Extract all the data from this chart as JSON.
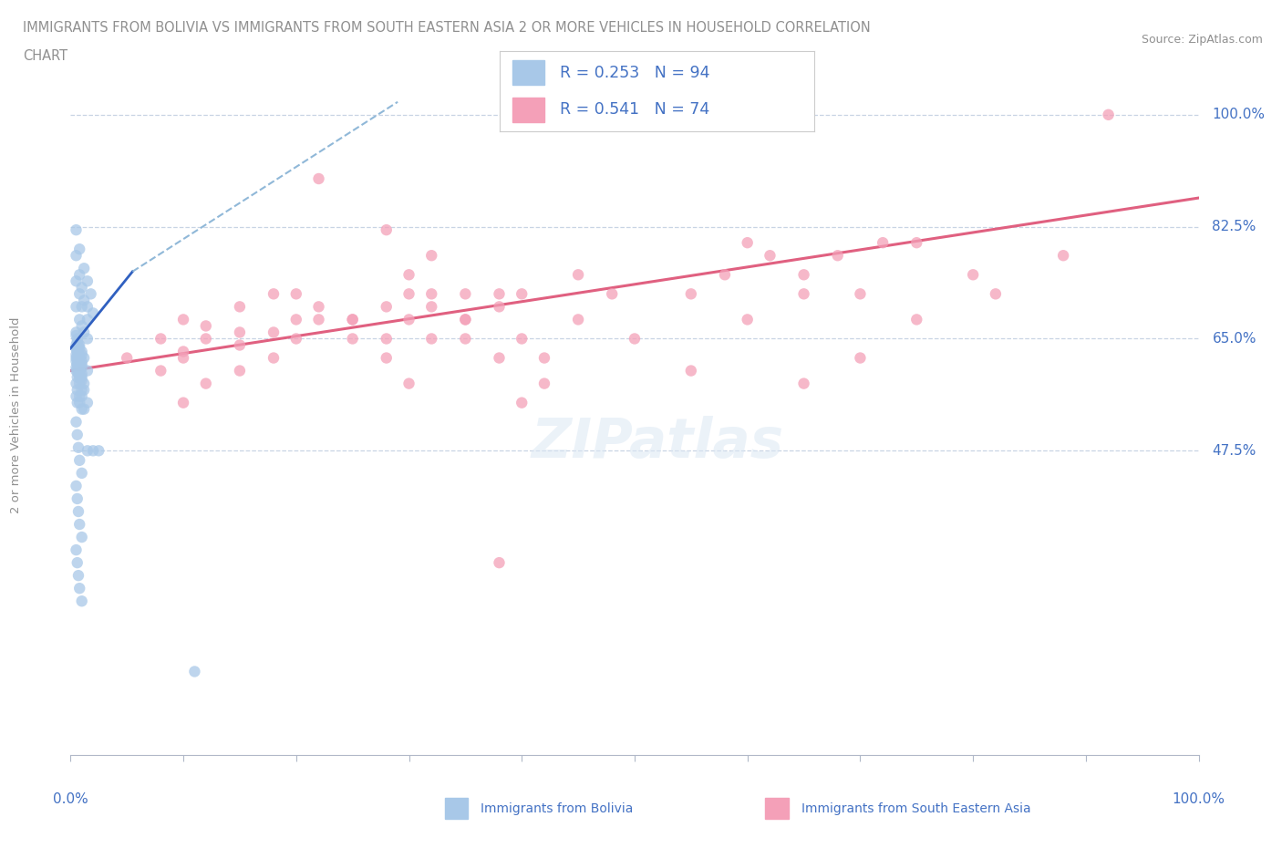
{
  "title_line1": "IMMIGRANTS FROM BOLIVIA VS IMMIGRANTS FROM SOUTH EASTERN ASIA 2 OR MORE VEHICLES IN HOUSEHOLD CORRELATION",
  "title_line2": "CHART",
  "source": "Source: ZipAtlas.com",
  "ylabel": "2 or more Vehicles in Household",
  "r_bolivia": 0.253,
  "n_bolivia": 94,
  "r_sea": 0.541,
  "n_sea": 74,
  "color_bolivia": "#a8c8e8",
  "color_sea": "#f4a0b8",
  "trendline_bolivia_solid_color": "#3060c0",
  "trendline_bolivia_dash_color": "#90b8d8",
  "trendline_sea_color": "#e06080",
  "gridline_color": "#c8d4e4",
  "axis_color": "#b0b8c8",
  "text_color": "#4472c4",
  "title_color": "#909090",
  "bolivia_x": [
    0.005,
    0.008,
    0.012,
    0.015,
    0.018,
    0.005,
    0.008,
    0.01,
    0.012,
    0.015,
    0.005,
    0.008,
    0.01,
    0.015,
    0.02,
    0.005,
    0.008,
    0.01,
    0.012,
    0.015,
    0.005,
    0.006,
    0.008,
    0.01,
    0.012,
    0.005,
    0.006,
    0.008,
    0.01,
    0.015,
    0.005,
    0.006,
    0.008,
    0.01,
    0.012,
    0.005,
    0.006,
    0.008,
    0.01,
    0.012,
    0.005,
    0.006,
    0.008,
    0.01,
    0.015,
    0.005,
    0.006,
    0.008,
    0.01,
    0.012,
    0.005,
    0.006,
    0.007,
    0.008,
    0.01,
    0.005,
    0.006,
    0.007,
    0.008,
    0.01,
    0.005,
    0.006,
    0.007,
    0.008,
    0.01,
    0.005,
    0.006,
    0.007,
    0.008,
    0.01,
    0.005,
    0.006,
    0.007,
    0.008,
    0.01,
    0.005,
    0.006,
    0.007,
    0.008,
    0.01,
    0.005,
    0.006,
    0.007,
    0.008,
    0.01,
    0.005,
    0.006,
    0.007,
    0.008,
    0.01,
    0.015,
    0.02,
    0.025,
    0.11
  ],
  "bolivia_y": [
    0.82,
    0.79,
    0.76,
    0.74,
    0.72,
    0.78,
    0.75,
    0.73,
    0.71,
    0.7,
    0.74,
    0.72,
    0.7,
    0.68,
    0.69,
    0.7,
    0.68,
    0.67,
    0.66,
    0.65,
    0.66,
    0.65,
    0.64,
    0.63,
    0.62,
    0.64,
    0.63,
    0.62,
    0.61,
    0.6,
    0.62,
    0.61,
    0.6,
    0.59,
    0.58,
    0.6,
    0.59,
    0.58,
    0.57,
    0.57,
    0.58,
    0.57,
    0.56,
    0.56,
    0.55,
    0.56,
    0.55,
    0.55,
    0.54,
    0.54,
    0.655,
    0.645,
    0.64,
    0.635,
    0.625,
    0.635,
    0.63,
    0.625,
    0.62,
    0.615,
    0.625,
    0.62,
    0.615,
    0.61,
    0.605,
    0.615,
    0.61,
    0.605,
    0.6,
    0.595,
    0.605,
    0.6,
    0.595,
    0.59,
    0.585,
    0.52,
    0.5,
    0.48,
    0.46,
    0.44,
    0.42,
    0.4,
    0.38,
    0.36,
    0.34,
    0.32,
    0.3,
    0.28,
    0.26,
    0.24,
    0.475,
    0.475,
    0.475,
    0.13
  ],
  "sea_x": [
    0.05,
    0.08,
    0.1,
    0.12,
    0.15,
    0.08,
    0.1,
    0.12,
    0.15,
    0.18,
    0.1,
    0.12,
    0.15,
    0.18,
    0.2,
    0.15,
    0.18,
    0.2,
    0.22,
    0.25,
    0.2,
    0.22,
    0.25,
    0.28,
    0.3,
    0.25,
    0.28,
    0.3,
    0.32,
    0.35,
    0.28,
    0.3,
    0.32,
    0.35,
    0.38,
    0.3,
    0.32,
    0.35,
    0.38,
    0.4,
    0.35,
    0.38,
    0.4,
    0.42,
    0.45,
    0.4,
    0.42,
    0.45,
    0.48,
    0.5,
    0.28,
    0.32,
    0.38,
    0.1,
    0.22,
    0.55,
    0.58,
    0.6,
    0.62,
    0.65,
    0.6,
    0.65,
    0.68,
    0.7,
    0.72,
    0.65,
    0.7,
    0.75,
    0.55,
    0.8,
    0.75,
    0.82,
    0.88,
    0.92
  ],
  "sea_y": [
    0.62,
    0.6,
    0.62,
    0.58,
    0.64,
    0.65,
    0.63,
    0.67,
    0.6,
    0.66,
    0.68,
    0.65,
    0.7,
    0.62,
    0.68,
    0.66,
    0.72,
    0.65,
    0.7,
    0.68,
    0.72,
    0.68,
    0.65,
    0.7,
    0.72,
    0.68,
    0.65,
    0.75,
    0.7,
    0.72,
    0.62,
    0.68,
    0.72,
    0.65,
    0.7,
    0.58,
    0.65,
    0.68,
    0.62,
    0.72,
    0.68,
    0.72,
    0.65,
    0.58,
    0.75,
    0.55,
    0.62,
    0.68,
    0.72,
    0.65,
    0.82,
    0.78,
    0.3,
    0.55,
    0.9,
    0.72,
    0.75,
    0.68,
    0.78,
    0.72,
    0.8,
    0.75,
    0.78,
    0.72,
    0.8,
    0.58,
    0.62,
    0.68,
    0.6,
    0.75,
    0.8,
    0.72,
    0.78,
    1.0
  ],
  "ytick_vals": [
    0.475,
    0.65,
    0.825,
    1.0
  ],
  "ytick_labels": [
    "47.5%",
    "65.0%",
    "82.5%",
    "100.0%"
  ],
  "xlim": [
    0.0,
    1.0
  ],
  "ylim": [
    0.0,
    1.06
  ]
}
